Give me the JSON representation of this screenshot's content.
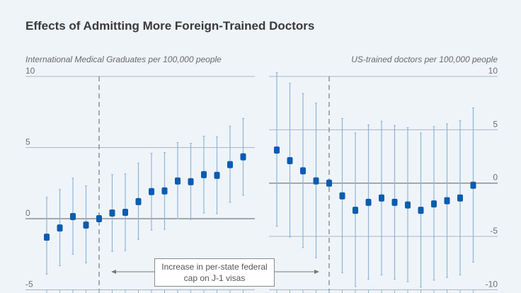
{
  "title": "Effects of Admitting More Foreign-Trained Doctors",
  "annotation": {
    "line1": "Increase in per-state federal",
    "line2": "cap on J-1 visas"
  },
  "colors": {
    "marker": "#0a5cb0",
    "errorbar": "#8fb4d6",
    "grid": "#a9b7c6",
    "zero": "#8a8f95",
    "dashed": "#7a7a7a",
    "background": "#eff4f9"
  },
  "chart_data": [
    {
      "type": "scatter",
      "subtype": "point estimates with error bars",
      "ylabel": "International Medical Graduates per 100,000 people",
      "ylim": [
        -5,
        10
      ],
      "yticks": [
        -5,
        0,
        5,
        10
      ],
      "axis_side": "left",
      "grid": true,
      "reference_index": 4,
      "points": [
        {
          "y": -1.3,
          "lo": -3.9,
          "hi": 1.5
        },
        {
          "y": -0.65,
          "lo": -3.3,
          "hi": 2.05
        },
        {
          "y": 0.15,
          "lo": -2.5,
          "hi": 2.85
        },
        {
          "y": -0.45,
          "lo": -3.1,
          "hi": 2.3
        },
        {
          "y": 0.0,
          "lo": 0.0,
          "hi": 0.0
        },
        {
          "y": 0.4,
          "lo": -2.3,
          "hi": 3.1
        },
        {
          "y": 0.45,
          "lo": -2.25,
          "hi": 3.15
        },
        {
          "y": 1.2,
          "lo": -1.45,
          "hi": 3.9
        },
        {
          "y": 1.9,
          "lo": -0.8,
          "hi": 4.6
        },
        {
          "y": 1.95,
          "lo": -0.75,
          "hi": 4.65
        },
        {
          "y": 2.65,
          "lo": 0.0,
          "hi": 5.35
        },
        {
          "y": 2.6,
          "lo": -0.05,
          "hi": 5.3
        },
        {
          "y": 3.1,
          "lo": 0.4,
          "hi": 5.8
        },
        {
          "y": 3.05,
          "lo": 0.35,
          "hi": 5.75
        },
        {
          "y": 3.8,
          "lo": 1.15,
          "hi": 6.5
        },
        {
          "y": 4.35,
          "lo": 1.65,
          "hi": 7.05
        }
      ]
    },
    {
      "type": "scatter",
      "subtype": "point estimates with error bars",
      "ylabel": "US-trained doctors per 100,000 people",
      "ylim": [
        -10,
        10
      ],
      "yticks": [
        -10,
        -5,
        0,
        5,
        10
      ],
      "axis_side": "right",
      "grid": true,
      "reference_index": 4,
      "points": [
        {
          "y": 3.1,
          "lo": -4.05,
          "hi": 10.35
        },
        {
          "y": 2.1,
          "lo": -5.05,
          "hi": 9.35
        },
        {
          "y": 1.15,
          "lo": -6.05,
          "hi": 8.4
        },
        {
          "y": 0.2,
          "lo": -7.0,
          "hi": 7.5
        },
        {
          "y": 0.0,
          "lo": 0.0,
          "hi": 0.0
        },
        {
          "y": -1.2,
          "lo": -8.4,
          "hi": 6.05
        },
        {
          "y": -2.55,
          "lo": -9.7,
          "hi": 4.7
        },
        {
          "y": -1.8,
          "lo": -9.0,
          "hi": 5.45
        },
        {
          "y": -1.4,
          "lo": -8.6,
          "hi": 5.8
        },
        {
          "y": -1.8,
          "lo": -9.0,
          "hi": 5.4
        },
        {
          "y": -2.05,
          "lo": -9.25,
          "hi": 5.2
        },
        {
          "y": -2.55,
          "lo": -9.75,
          "hi": 4.7
        },
        {
          "y": -1.95,
          "lo": -9.1,
          "hi": 5.3
        },
        {
          "y": -1.65,
          "lo": -8.85,
          "hi": 5.55
        },
        {
          "y": -1.4,
          "lo": -8.6,
          "hi": 5.85
        },
        {
          "y": -0.2,
          "lo": -7.4,
          "hi": 7.05
        }
      ]
    }
  ]
}
